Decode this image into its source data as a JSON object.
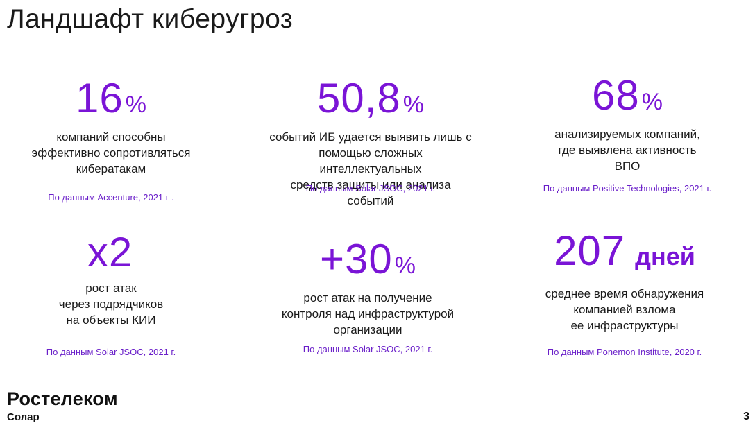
{
  "title": "Ландшафт киберугроз",
  "stats": [
    {
      "value": "16",
      "unit": "%",
      "description": "компаний способны\nэффективно сопротивляться\nкибератакам",
      "source": "По данным Accenture, 2021 г ."
    },
    {
      "value": "50,8",
      "unit": "%",
      "description": "событий ИБ удается выявить лишь с\nпомощью сложных интеллектуальных\nсредств защиты или анализа событий",
      "source": "По данным Solar JSOC, 2021 г."
    },
    {
      "value": "68",
      "unit": "%",
      "description": "анализируемых компаний,\nгде выявлена активность\nВПО",
      "source": "По данным Positive Technologies, 2021 г."
    },
    {
      "value": "x2",
      "unit": "",
      "description": "рост атак\nчерез подрядчиков\nна объекты КИИ",
      "source": "По данным Solar JSOC, 2021 г."
    },
    {
      "value": "+30",
      "unit": "%",
      "description": "рост атак на получение\nконтроля над инфраструктурой\nорганизации",
      "source": "По данным Solar JSOC, 2021 г."
    },
    {
      "value": "207",
      "unit": "дней",
      "description": "среднее время обнаружения\nкомпанией взлома\nее инфраструктуры",
      "source": "По данным Ponemon Institute, 2020 г."
    }
  ],
  "logo": {
    "name": "Ростелеком",
    "sub": "Солар"
  },
  "page_number": "3",
  "colors": {
    "accent": "#7a14d6",
    "source_text": "#6a1fc9",
    "text": "#1a1a1a"
  }
}
